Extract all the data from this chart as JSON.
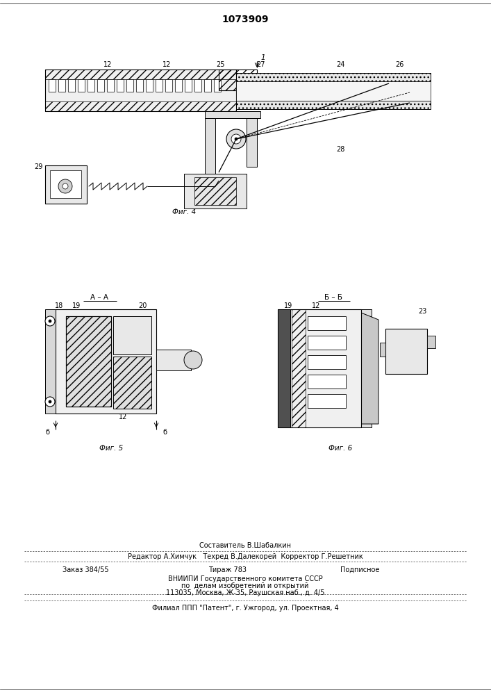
{
  "patent_number": "1073909",
  "background_color": "#ffffff",
  "line_color": "#000000",
  "fig_width": 7.07,
  "fig_height": 10.0,
  "footer": {
    "composer": "Составитель В.Шабалкин",
    "editor_line": "Редактор А.Химчук   Техред В.Далекорей  Корректор Г.Решетник",
    "order": "Заказ 384/55",
    "circulation": "Тираж 783",
    "subscription": "Подписное",
    "org1": "ВНИИПИ Государственного комитета СССР",
    "org2": "по  делам изобретений и открытий",
    "org3": "113035, Москва, Ж-35, Раушская наб., д. 4/5",
    "branch": "Филиал ППП \"Патент\", г. Ужгород, ул. Проектная, 4"
  },
  "fig4_caption": "Фиг. 4",
  "fig5_caption": "Фиг. 5",
  "fig6_caption": "Фиг. 6"
}
